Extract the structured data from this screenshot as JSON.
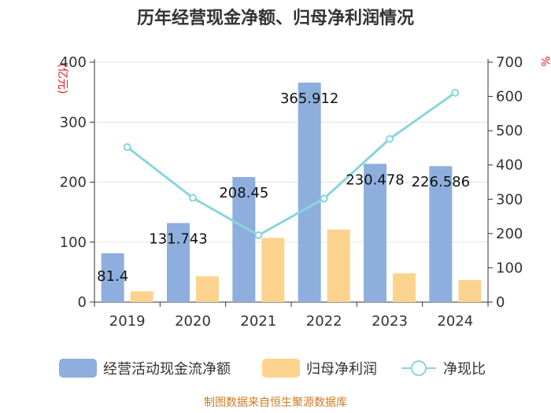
{
  "chart_data": {
    "type": "bar",
    "title": "历年经营现金净额、归母净利润情况",
    "categories": [
      "2019",
      "2020",
      "2021",
      "2022",
      "2023",
      "2024"
    ],
    "series": [
      {
        "name": "经营活动现金流净额",
        "type": "bar",
        "axis": "left",
        "color": "#8eaedd",
        "values": [
          81.4,
          131.743,
          208.45,
          365.912,
          230.478,
          226.586
        ],
        "labels": [
          "81.4",
          "131.743",
          "208.45",
          "365.912",
          "230.478",
          "226.586"
        ]
      },
      {
        "name": "归母净利润",
        "type": "bar",
        "axis": "left",
        "color": "#fcd38e",
        "values": [
          18,
          43,
          107,
          121,
          48,
          37
        ]
      },
      {
        "name": "净现比",
        "type": "line",
        "axis": "right",
        "color": "#88d6db",
        "values": [
          452,
          304,
          195,
          302,
          476,
          611
        ]
      }
    ],
    "left_axis": {
      "unit": "(亿元)",
      "ylim": [
        0,
        400
      ],
      "ticks": [
        0,
        100,
        200,
        300,
        400
      ]
    },
    "right_axis": {
      "unit": "%",
      "ylim": [
        0,
        700
      ],
      "ticks": [
        0,
        100,
        200,
        300,
        400,
        500,
        600,
        700
      ]
    },
    "source": "制图数据来自恒生聚源数据库"
  }
}
